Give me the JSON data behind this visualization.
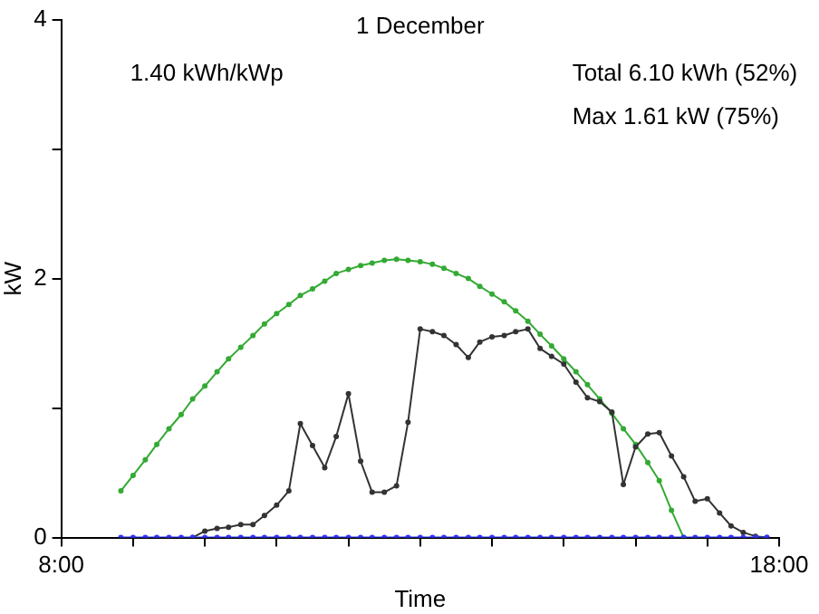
{
  "chart_data": {
    "type": "line",
    "title": "1 December",
    "xlabel": "Time",
    "ylabel": "kW",
    "annotations": [
      "1.40 kWh/kWp",
      "Total 6.10 kWh (52%)",
      "Max 1.61 kW (75%)"
    ],
    "xlim": [
      8,
      18
    ],
    "xticks": [
      {
        "value": 8,
        "label": "8:00"
      },
      {
        "value": 9,
        "label": null
      },
      {
        "value": 10,
        "label": null
      },
      {
        "value": 11,
        "label": null
      },
      {
        "value": 12,
        "label": null
      },
      {
        "value": 13,
        "label": null
      },
      {
        "value": 14,
        "label": null
      },
      {
        "value": 15,
        "label": null
      },
      {
        "value": 16,
        "label": null
      },
      {
        "value": 17,
        "label": null
      },
      {
        "value": 18,
        "label": "18:00"
      }
    ],
    "ylim": [
      0,
      4
    ],
    "yticks": [
      0,
      {
        "value": 1,
        "label": null
      },
      2,
      {
        "value": 3,
        "label": null
      },
      4
    ],
    "grid": false,
    "legend": false,
    "marker": "circle",
    "line_style": "solid",
    "series": [
      {
        "color": "#33aa33",
        "x": [
          8.83,
          9.0,
          9.17,
          9.33,
          9.5,
          9.67,
          9.83,
          10,
          10.17,
          10.33,
          10.5,
          10.67,
          10.83,
          11,
          11.17,
          11.33,
          11.5,
          11.67,
          11.83,
          12,
          12.17,
          12.33,
          12.5,
          12.67,
          12.83,
          13,
          13.17,
          13.33,
          13.5,
          13.67,
          13.83,
          14,
          14.17,
          14.33,
          14.5,
          14.67,
          14.83,
          15,
          15.17,
          15.33,
          15.5,
          15.67,
          15.83,
          16,
          16.17,
          16.33,
          16.5,
          16.67
        ],
        "values": [
          0.36,
          0.48,
          0.6,
          0.72,
          0.84,
          0.95,
          1.07,
          1.17,
          1.28,
          1.38,
          1.47,
          1.56,
          1.65,
          1.73,
          1.8,
          1.87,
          1.92,
          1.98,
          2.04,
          2.07,
          2.1,
          2.12,
          2.14,
          2.15,
          2.14,
          2.13,
          2.11,
          2.08,
          2.04,
          2.0,
          1.94,
          1.88,
          1.82,
          1.75,
          1.67,
          1.57,
          1.48,
          1.38,
          1.28,
          1.18,
          1.07,
          0.96,
          0.84,
          0.72,
          0.58,
          0.44,
          0.21,
          0
        ]
      },
      {
        "color": "#333333",
        "x": [
          9.83,
          10,
          10.17,
          10.33,
          10.5,
          10.67,
          10.83,
          11,
          11.17,
          11.33,
          11.5,
          11.67,
          11.83,
          12,
          12.17,
          12.33,
          12.5,
          12.67,
          12.83,
          13,
          13.17,
          13.33,
          13.5,
          13.67,
          13.83,
          14,
          14.17,
          14.33,
          14.5,
          14.67,
          14.83,
          15,
          15.17,
          15.33,
          15.5,
          15.67,
          15.83,
          16,
          16.17,
          16.33,
          16.5,
          16.67,
          16.83,
          17,
          17.17,
          17.33,
          17.5,
          17.67,
          17.83
        ],
        "values": [
          0,
          0.05,
          0.07,
          0.08,
          0.1,
          0.1,
          0.17,
          0.25,
          0.36,
          0.88,
          0.71,
          0.54,
          0.78,
          1.11,
          0.59,
          0.35,
          0.35,
          0.4,
          0.89,
          1.61,
          1.59,
          1.56,
          1.49,
          1.39,
          1.51,
          1.55,
          1.56,
          1.59,
          1.61,
          1.46,
          1.4,
          1.34,
          1.2,
          1.08,
          1.05,
          0.97,
          0.41,
          0.7,
          0.8,
          0.81,
          0.63,
          0.47,
          0.28,
          0.3,
          0.19,
          0.09,
          0.04,
          0.01,
          0
        ]
      },
      {
        "color": "#3333ff",
        "x": [
          8.83,
          9.0,
          9.17,
          9.33,
          9.5,
          9.67,
          9.83,
          10,
          10.17,
          10.33,
          10.5,
          10.67,
          10.83,
          11,
          11.17,
          11.33,
          11.5,
          11.67,
          11.83,
          12,
          12.17,
          12.33,
          12.5,
          12.67,
          12.83,
          13,
          13.17,
          13.33,
          13.5,
          13.67,
          13.83,
          14,
          14.17,
          14.33,
          14.5,
          14.67,
          14.83,
          15,
          15.17,
          15.33,
          15.5,
          15.67,
          15.83,
          16,
          16.17,
          16.33,
          16.5,
          16.67,
          16.83,
          17,
          17.17,
          17.33,
          17.5,
          17.67,
          17.83
        ],
        "values": [
          0,
          0,
          0,
          0,
          0,
          0,
          0,
          0,
          0,
          0,
          0,
          0,
          0,
          0,
          0,
          0,
          0,
          0,
          0,
          0,
          0,
          0,
          0,
          0,
          0,
          0,
          0,
          0,
          0,
          0,
          0,
          0,
          0,
          0,
          0,
          0,
          0,
          0,
          0,
          0,
          0,
          0,
          0,
          0,
          0,
          0,
          0,
          0,
          0,
          0,
          0,
          0,
          0,
          0,
          0
        ]
      }
    ]
  }
}
